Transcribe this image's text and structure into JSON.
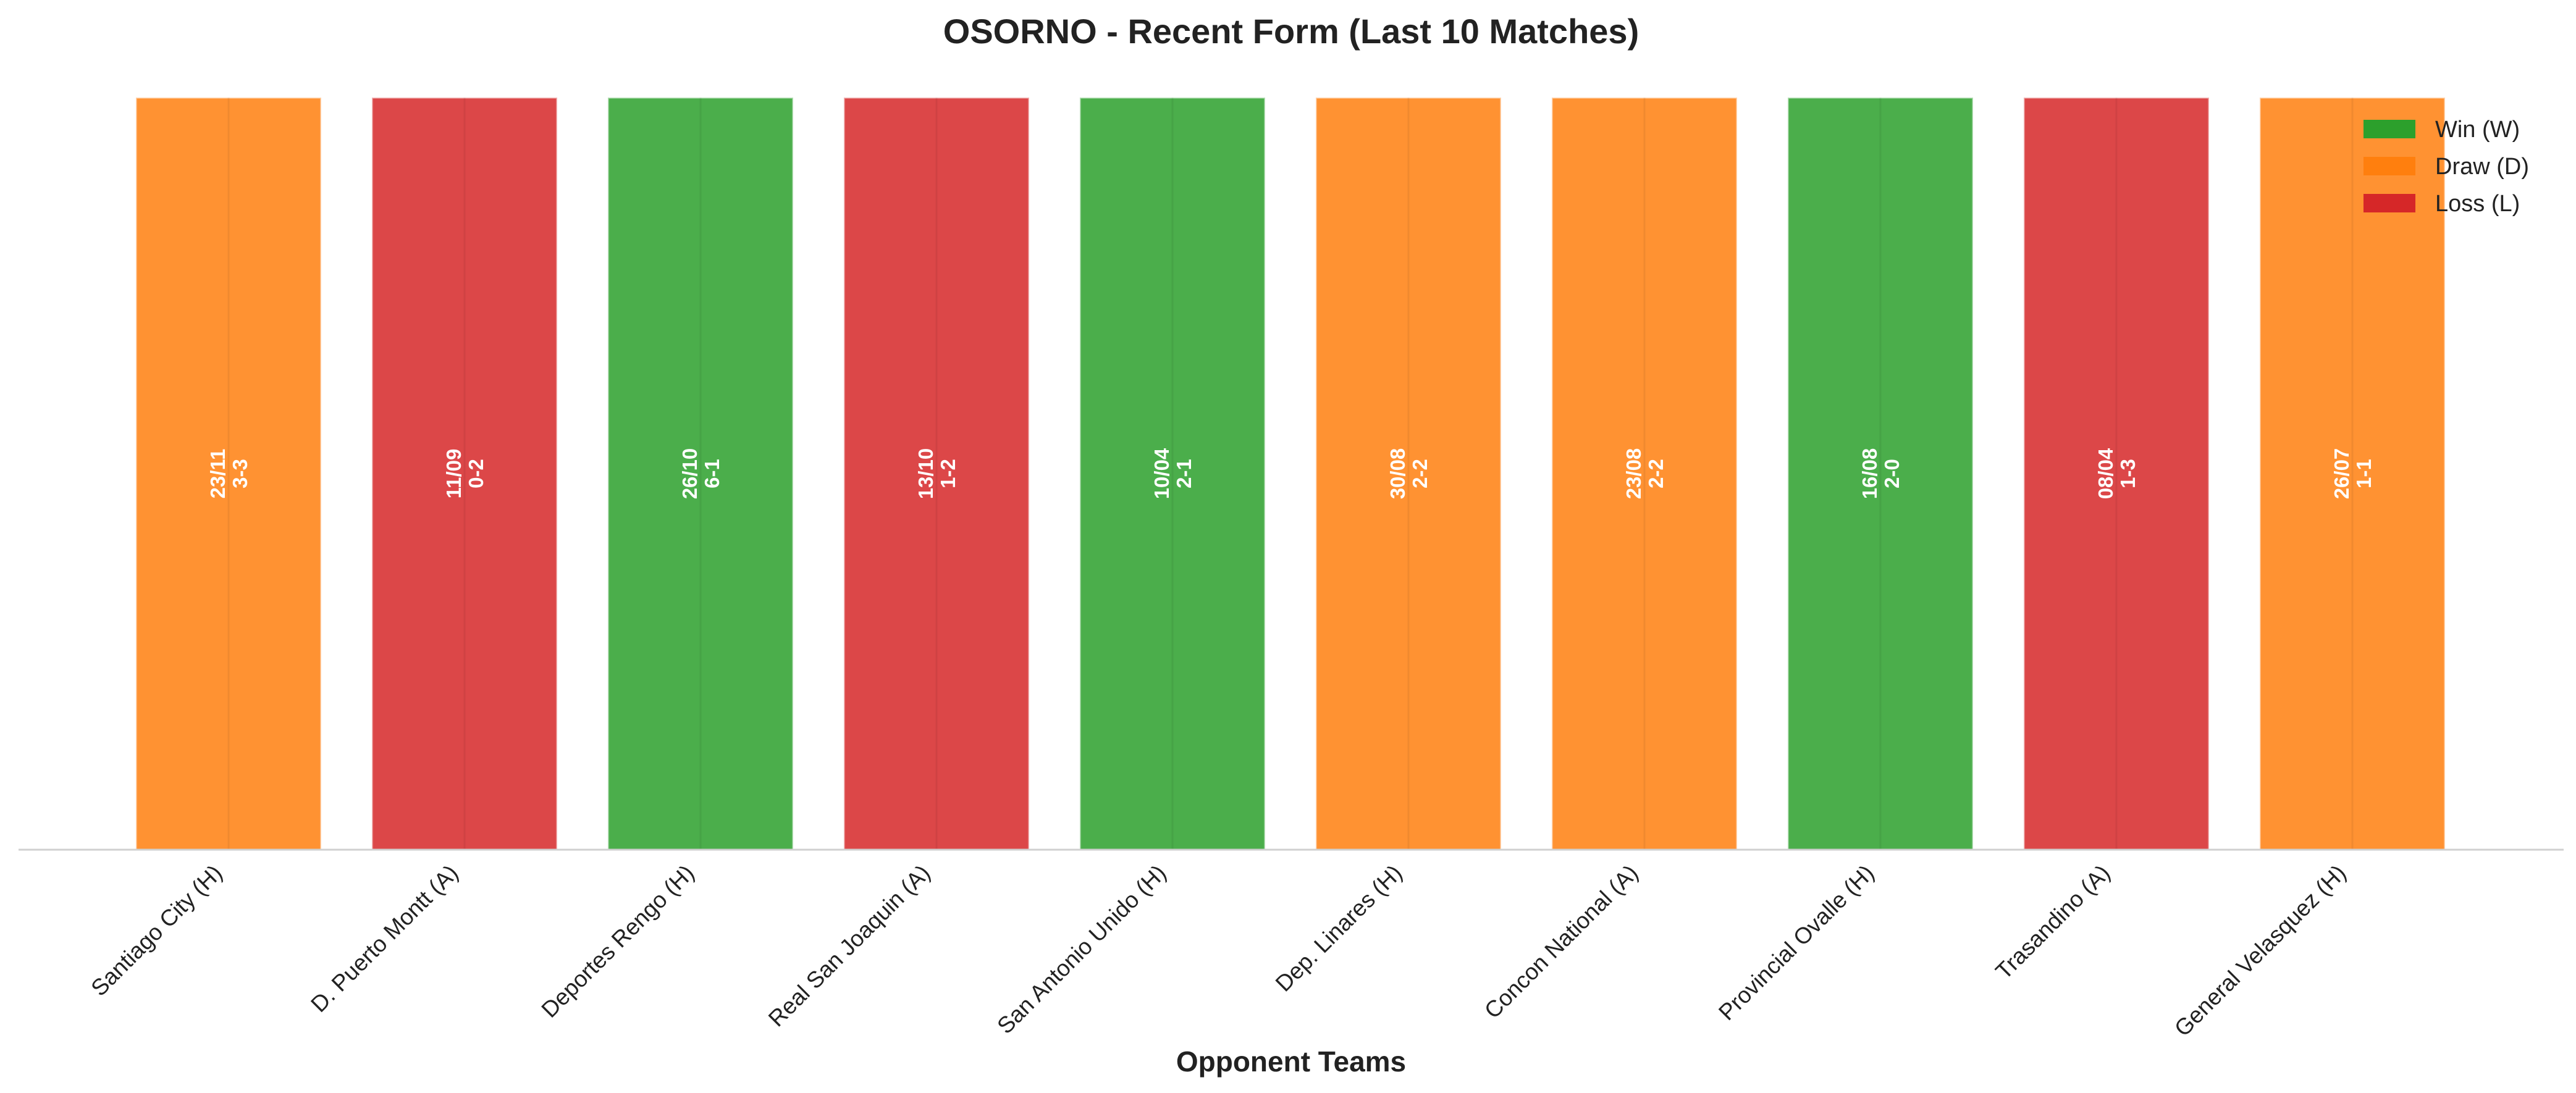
{
  "chart_data": {
    "type": "bar",
    "title": "OSORNO - Recent Form (Last 10 Matches)",
    "xlabel": "Opponent Teams",
    "ylabel": "",
    "ylim": [
      0,
      1
    ],
    "grid": false,
    "legend_position": "top-right",
    "legend": [
      {
        "key": "W",
        "label": "Win (W)",
        "color": "#2ca02c"
      },
      {
        "key": "D",
        "label": "Draw (D)",
        "color": "#ff7f0e"
      },
      {
        "key": "L",
        "label": "Loss (L)",
        "color": "#d62728"
      }
    ],
    "categories": [
      "Santiago City (H)",
      "D. Puerto Montt (A)",
      "Deportes Rengo (H)",
      "Real San Joaquin (A)",
      "San Antonio Unido (H)",
      "Dep. Linares (H)",
      "Concon National (A)",
      "Provincial Ovalle (H)",
      "Trasandino (A)",
      "General Velasquez (H)"
    ],
    "values": [
      1,
      1,
      1,
      1,
      1,
      1,
      1,
      1,
      1,
      1
    ],
    "results": [
      "D",
      "L",
      "W",
      "L",
      "W",
      "D",
      "D",
      "W",
      "L",
      "D"
    ],
    "dates": [
      "23/11",
      "11/09",
      "26/10",
      "13/10",
      "10/04",
      "30/08",
      "23/08",
      "16/08",
      "08/04",
      "26/07"
    ],
    "scores": [
      "3-3",
      "0-2",
      "6-1",
      "1-2",
      "2-1",
      "2-2",
      "2-2",
      "2-0",
      "1-3",
      "1-1"
    ]
  }
}
